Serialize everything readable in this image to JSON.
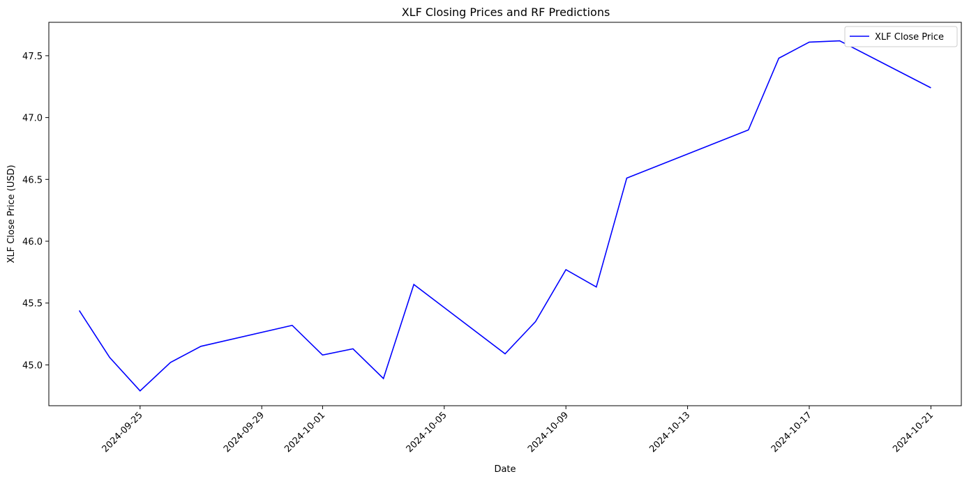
{
  "chart_data": {
    "type": "line",
    "title": "XLF Closing Prices and RF Predictions",
    "xlabel": "Date",
    "ylabel": "XLF Close Price (USD)",
    "grid": false,
    "legend_position": "top-right",
    "xlim": [
      "2024-09-22",
      "2024-10-22"
    ],
    "ylim": [
      44.67,
      47.77
    ],
    "x_ticks": [
      "2024-09-25",
      "2024-09-29",
      "2024-10-01",
      "2024-10-05",
      "2024-10-09",
      "2024-10-13",
      "2024-10-17",
      "2024-10-21"
    ],
    "y_ticks": [
      "45.0",
      "45.5",
      "46.0",
      "46.5",
      "47.0",
      "47.5"
    ],
    "series": [
      {
        "name": "XLF Close Price",
        "color": "#0000ff",
        "x": [
          "2024-09-23",
          "2024-09-24",
          "2024-09-25",
          "2024-09-26",
          "2024-09-27",
          "2024-09-30",
          "2024-10-01",
          "2024-10-02",
          "2024-10-03",
          "2024-10-04",
          "2024-10-07",
          "2024-10-08",
          "2024-10-09",
          "2024-10-10",
          "2024-10-11",
          "2024-10-15",
          "2024-10-16",
          "2024-10-17",
          "2024-10-18",
          "2024-10-21"
        ],
        "values": [
          45.44,
          45.06,
          44.79,
          45.02,
          45.15,
          45.32,
          45.08,
          45.13,
          44.89,
          45.65,
          45.09,
          45.35,
          45.77,
          45.63,
          46.51,
          46.9,
          47.48,
          47.61,
          47.62,
          47.24
        ]
      }
    ]
  }
}
